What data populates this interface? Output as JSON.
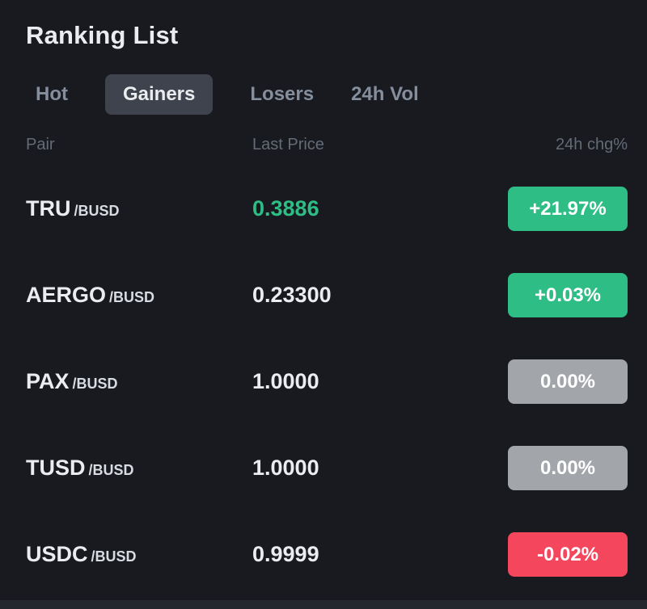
{
  "title": "Ranking List",
  "tabs": [
    {
      "label": "Hot",
      "active": false
    },
    {
      "label": "Gainers",
      "active": true
    },
    {
      "label": "Losers",
      "active": false
    },
    {
      "label": "24h Vol",
      "active": false
    }
  ],
  "columns": {
    "pair": "Pair",
    "last_price": "Last Price",
    "change": "24h chg%"
  },
  "rows": [
    {
      "base": "TRU",
      "quote": "/BUSD",
      "last_price": "0.3886",
      "change": "+21.97%",
      "direction": "up"
    },
    {
      "base": "AERGO",
      "quote": "/BUSD",
      "last_price": "0.23300",
      "change": "+0.03%",
      "direction": "up"
    },
    {
      "base": "PAX",
      "quote": "/BUSD",
      "last_price": "1.0000",
      "change": "0.00%",
      "direction": "flat"
    },
    {
      "base": "TUSD",
      "quote": "/BUSD",
      "last_price": "1.0000",
      "change": "0.00%",
      "direction": "flat"
    },
    {
      "base": "USDC",
      "quote": "/BUSD",
      "last_price": "0.9999",
      "change": "-0.02%",
      "direction": "down"
    }
  ],
  "colors": {
    "background": "#181a20",
    "up": "#2ebd85",
    "flat": "#a2a6aa",
    "down": "#f4465d",
    "active_tab_bg": "#3e434d",
    "text_primary": "#eaecef",
    "text_muted": "#848e9c"
  }
}
